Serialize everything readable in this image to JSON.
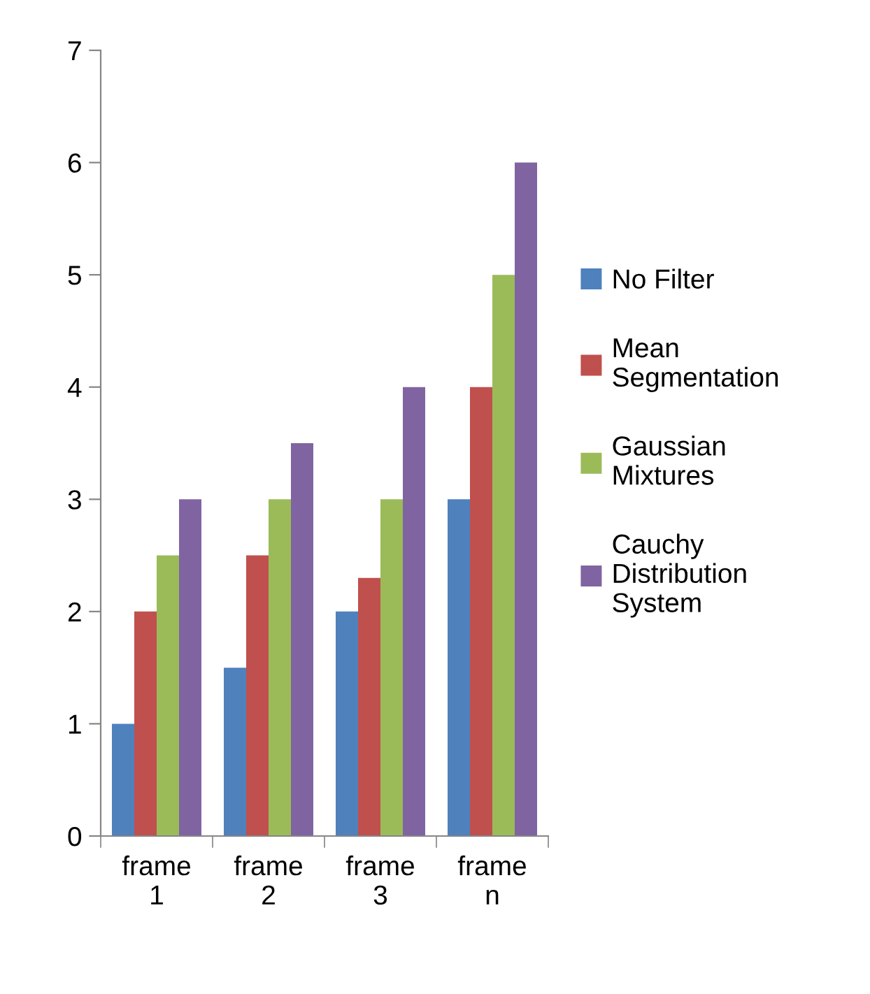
{
  "chart_data": {
    "type": "bar",
    "categories": [
      "frame\n1",
      "frame\n2",
      "frame\n3",
      "frame\nn"
    ],
    "series": [
      {
        "name": "No Filter",
        "color": "#4f81bd",
        "values": [
          1,
          1.5,
          2,
          3
        ]
      },
      {
        "name": "Mean\nSegmentation",
        "color": "#c0504d",
        "values": [
          2,
          2.5,
          2.3,
          4
        ]
      },
      {
        "name": "Gaussian\nMixtures",
        "color": "#9bbb59",
        "values": [
          2.5,
          3,
          3,
          5
        ]
      },
      {
        "name": "Cauchy\nDistribution\nSystem",
        "color": "#8064a2",
        "values": [
          3,
          3.5,
          4,
          6
        ]
      }
    ],
    "ylim": [
      0,
      7
    ],
    "yticks": [
      0,
      1,
      2,
      3,
      4,
      5,
      6,
      7
    ],
    "grid": false,
    "legend": "right"
  }
}
